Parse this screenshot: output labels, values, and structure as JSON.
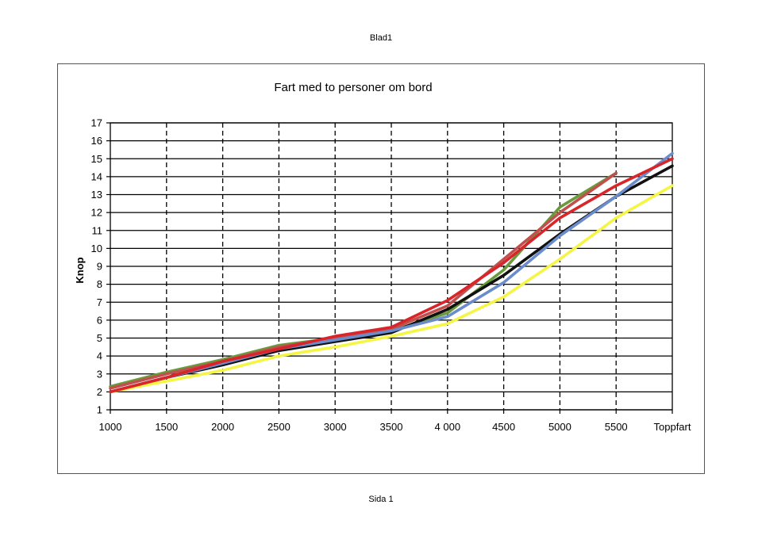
{
  "page": {
    "header": "Blad1",
    "footer": "Sida 1"
  },
  "chart_data": {
    "type": "line",
    "title": "Fart med to personer om bord",
    "xlabel": "",
    "ylabel": "Knop",
    "categories": [
      "1000",
      "1500",
      "2000",
      "2500",
      "3000",
      "3500",
      "4 000",
      "4500",
      "5000",
      "5500",
      "Toppfart"
    ],
    "ylim": [
      1,
      17
    ],
    "yticks": [
      1,
      2,
      3,
      4,
      5,
      6,
      7,
      8,
      9,
      10,
      11,
      12,
      13,
      14,
      15,
      16,
      17
    ],
    "grid": true,
    "legend": "none",
    "series": [
      {
        "color": "#6a9a3c",
        "values": [
          2.3,
          3.1,
          3.8,
          4.6,
          5.0,
          5.4,
          6.4,
          8.8,
          12.3,
          14.2,
          null
        ]
      },
      {
        "color": "#c0504d",
        "values": [
          2.2,
          3.0,
          3.7,
          4.5,
          5.0,
          5.5,
          6.8,
          9.4,
          12.0,
          14.2,
          null
        ]
      },
      {
        "color": "#111111",
        "values": [
          2.0,
          2.8,
          3.5,
          4.3,
          4.8,
          5.3,
          6.6,
          8.5,
          10.8,
          12.9,
          14.6
        ]
      },
      {
        "color": "#6b8ccc",
        "values": [
          2.0,
          2.8,
          3.6,
          4.4,
          4.9,
          5.4,
          6.2,
          8.1,
          10.7,
          12.9,
          15.3
        ]
      },
      {
        "color": "#f5f545",
        "values": [
          2.0,
          2.6,
          3.2,
          4.0,
          4.5,
          5.1,
          5.8,
          7.3,
          9.4,
          11.7,
          13.5
        ]
      },
      {
        "color": "#d9252a",
        "values": [
          2.0,
          2.8,
          3.7,
          4.4,
          5.1,
          5.6,
          7.1,
          9.2,
          11.7,
          13.5,
          15.0
        ]
      }
    ]
  }
}
